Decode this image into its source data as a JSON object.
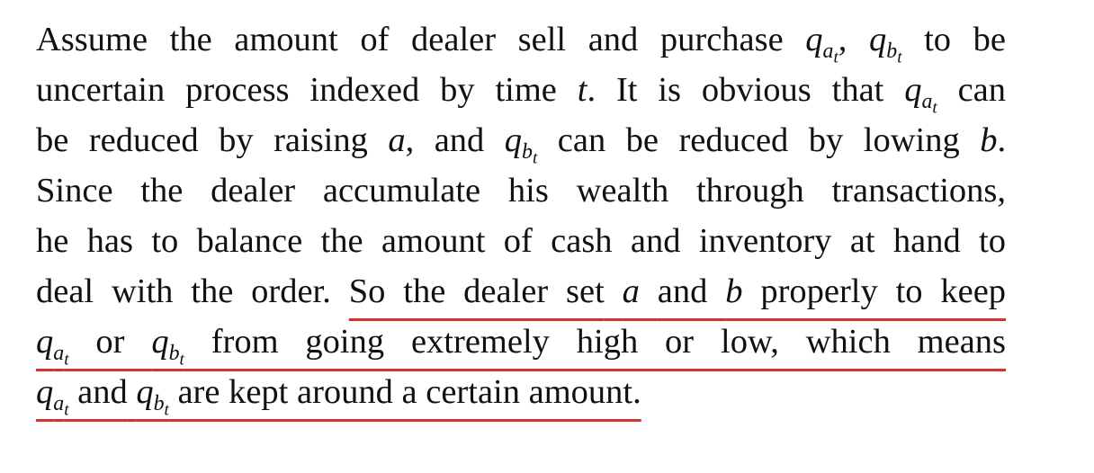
{
  "text": {
    "l1_a": "Assume the amount of dealer sell and purchase",
    "l1_sep": ",",
    "l1_b": "to be",
    "l2_a": "uncertain process indexed by time",
    "l2_b": ". It is obvious that",
    "l2_c": "can",
    "l3_a": "be reduced by raising",
    "l3_b": ", and",
    "l3_c": "can be reduced by lowing",
    "l3_d": ".",
    "l4": "Since the dealer accumulate his wealth through transactions,",
    "l5": "he has to balance the amount of cash and inventory at hand to",
    "l6_a": "deal with the order.",
    "l6_b": "So the dealer set",
    "l6_c": "and",
    "l6_d": "properly to keep",
    "l7_a": "or",
    "l7_b": "from going extremely high or low, which means",
    "l8_a": "and",
    "l8_b": "are kept around a certain amount."
  },
  "math": {
    "q": "q",
    "a": "a",
    "b": "b",
    "t": "t"
  },
  "colors": {
    "text": "#111111",
    "highlight_underline": "#d6322a",
    "background": "#ffffff"
  }
}
